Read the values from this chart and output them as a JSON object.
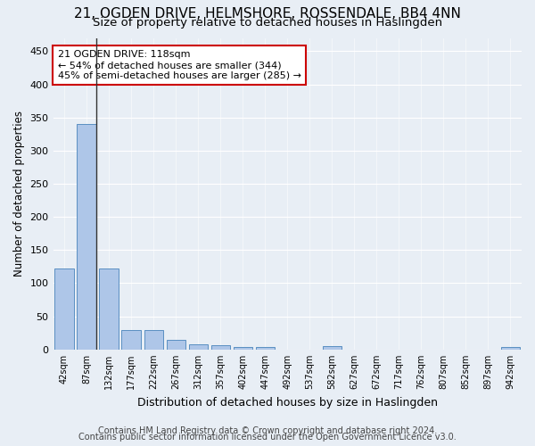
{
  "title1": "21, OGDEN DRIVE, HELMSHORE, ROSSENDALE, BB4 4NN",
  "title2": "Size of property relative to detached houses in Haslingden",
  "xlabel": "Distribution of detached houses by size in Haslingden",
  "ylabel": "Number of detached properties",
  "bin_labels": [
    "42sqm",
    "87sqm",
    "132sqm",
    "177sqm",
    "222sqm",
    "267sqm",
    "312sqm",
    "357sqm",
    "402sqm",
    "447sqm",
    "492sqm",
    "537sqm",
    "582sqm",
    "627sqm",
    "672sqm",
    "717sqm",
    "762sqm",
    "807sqm",
    "852sqm",
    "897sqm",
    "942sqm"
  ],
  "bar_values": [
    122,
    340,
    122,
    29,
    29,
    15,
    8,
    6,
    4,
    4,
    0,
    0,
    5,
    0,
    0,
    0,
    0,
    0,
    0,
    0,
    4
  ],
  "bar_color": "#aec6e8",
  "bar_edge_color": "#5a8fc2",
  "annotation_text": "21 OGDEN DRIVE: 118sqm\n← 54% of detached houses are smaller (344)\n45% of semi-detached houses are larger (285) →",
  "annotation_box_color": "#ffffff",
  "annotation_box_edge_color": "#cc0000",
  "subject_line_color": "#333333",
  "ylim": [
    0,
    470
  ],
  "yticks": [
    0,
    50,
    100,
    150,
    200,
    250,
    300,
    350,
    400,
    450
  ],
  "bg_color": "#e8eef5",
  "plot_bg_color": "#e8eef5",
  "footer1": "Contains HM Land Registry data © Crown copyright and database right 2024.",
  "footer2": "Contains public sector information licensed under the Open Government Licence v3.0.",
  "title1_fontsize": 11,
  "title2_fontsize": 9.5,
  "annotation_fontsize": 8,
  "xlabel_fontsize": 9,
  "ylabel_fontsize": 8.5,
  "footer_fontsize": 7
}
